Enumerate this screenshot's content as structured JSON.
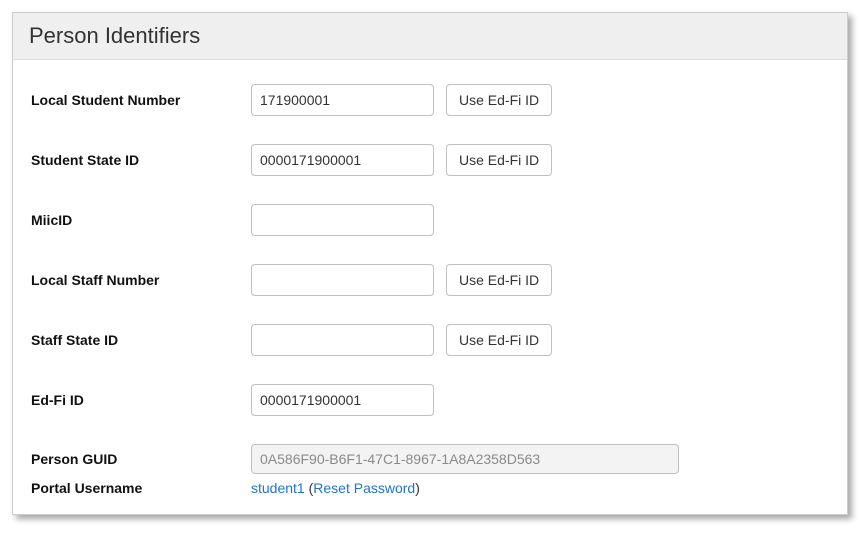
{
  "panel": {
    "title": "Person Identifiers"
  },
  "fields": {
    "localStudentNumber": {
      "label": "Local Student Number",
      "value": "171900001",
      "edfiButton": "Use Ed-Fi ID"
    },
    "studentStateId": {
      "label": "Student State ID",
      "value": "0000171900001",
      "edfiButton": "Use Ed-Fi ID"
    },
    "miicId": {
      "label": "MiicID",
      "value": ""
    },
    "localStaffNumber": {
      "label": "Local Staff Number",
      "value": "",
      "edfiButton": "Use Ed-Fi ID"
    },
    "staffStateId": {
      "label": "Staff State ID",
      "value": "",
      "edfiButton": "Use Ed-Fi ID"
    },
    "edfiId": {
      "label": "Ed-Fi ID",
      "value": "0000171900001"
    },
    "personGuid": {
      "label": "Person GUID",
      "value": "0A586F90-B6F1-47C1-8967-1A8A2358D563"
    },
    "portalUsername": {
      "label": "Portal Username",
      "username": "student1",
      "openParen": " (",
      "resetLink": "Reset Password",
      "closeParen": ")"
    }
  }
}
